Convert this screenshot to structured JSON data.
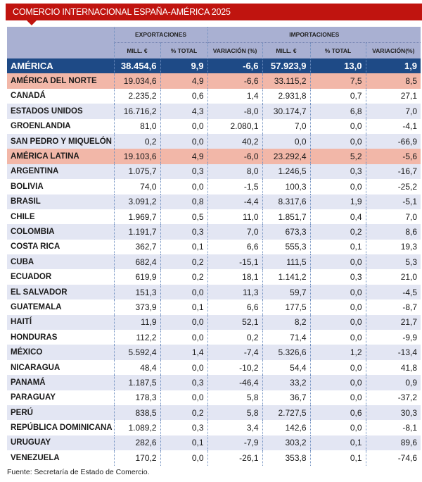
{
  "title": "COMERCIO INTERNACIONAL ESPAÑA-AMÉRICA 2025",
  "groups": {
    "exports": "EXPORTACIONES",
    "imports": "IMPORTACIONES"
  },
  "columns": [
    "MILL. €",
    "% TOTAL",
    "VARIACIÓN (%)",
    "MILL. €",
    "% TOTAL",
    "VARIACIÓN(%)"
  ],
  "colors": {
    "title_bg": "#c0140f",
    "header_bg": "#a9b0d2",
    "total_bg": "#1e4a86",
    "region_bg": "#f2b7a8",
    "stripe_bg": "#e3e6f3"
  },
  "rows": [
    {
      "name": "AMÉRICA",
      "type": "total",
      "values": [
        "38.454,6",
        "9,9",
        "-6,6",
        "57.923,9",
        "13,0",
        "1,9"
      ]
    },
    {
      "name": "AMÉRICA DEL NORTE",
      "type": "region",
      "values": [
        "19.034,6",
        "4,9",
        "-6,6",
        "33.115,2",
        "7,5",
        "8,5"
      ]
    },
    {
      "name": "CANADÁ",
      "type": "country",
      "values": [
        "2.235,2",
        "0,6",
        "1,4",
        "2.931,8",
        "0,7",
        "27,1"
      ]
    },
    {
      "name": "ESTADOS UNIDOS",
      "type": "country",
      "values": [
        "16.716,2",
        "4,3",
        "-8,0",
        "30.174,7",
        "6,8",
        "7,0"
      ]
    },
    {
      "name": "GROENLANDIA",
      "type": "country",
      "values": [
        "81,0",
        "0,0",
        "2.080,1",
        "7,0",
        "0,0",
        "-4,1"
      ]
    },
    {
      "name": "SAN PEDRO Y MIQUELÓN",
      "type": "country",
      "values": [
        "0,2",
        "0,0",
        "40,2",
        "0,0",
        "0,0",
        "-66,9"
      ]
    },
    {
      "name": "AMÉRICA LATINA",
      "type": "region",
      "values": [
        "19.103,6",
        "4,9",
        "-6,0",
        "23.292,4",
        "5,2",
        "-5,6"
      ]
    },
    {
      "name": "ARGENTINA",
      "type": "country",
      "values": [
        "1.075,7",
        "0,3",
        "8,0",
        "1.246,5",
        "0,3",
        "-16,7"
      ]
    },
    {
      "name": "BOLIVIA",
      "type": "country",
      "values": [
        "74,0",
        "0,0",
        "-1,5",
        "100,3",
        "0,0",
        "-25,2"
      ]
    },
    {
      "name": "BRASIL",
      "type": "country",
      "values": [
        "3.091,2",
        "0,8",
        "-4,4",
        "8.317,6",
        "1,9",
        "-5,1"
      ]
    },
    {
      "name": "CHILE",
      "type": "country",
      "values": [
        "1.969,7",
        "0,5",
        "11,0",
        "1.851,7",
        "0,4",
        "7,0"
      ]
    },
    {
      "name": "COLOMBIA",
      "type": "country",
      "values": [
        "1.191,7",
        "0,3",
        "7,0",
        "673,3",
        "0,2",
        "8,6"
      ]
    },
    {
      "name": "COSTA RICA",
      "type": "country",
      "values": [
        "362,7",
        "0,1",
        "6,6",
        "555,3",
        "0,1",
        "19,3"
      ]
    },
    {
      "name": "CUBA",
      "type": "country",
      "values": [
        "682,4",
        "0,2",
        "-15,1",
        "111,5",
        "0,0",
        "5,3"
      ]
    },
    {
      "name": "ECUADOR",
      "type": "country",
      "values": [
        "619,9",
        "0,2",
        "18,1",
        "1.141,2",
        "0,3",
        "21,0"
      ]
    },
    {
      "name": "EL SALVADOR",
      "type": "country",
      "values": [
        "151,3",
        "0,0",
        "11,3",
        "59,7",
        "0,0",
        "-4,5"
      ]
    },
    {
      "name": "GUATEMALA",
      "type": "country",
      "values": [
        "373,9",
        "0,1",
        "6,6",
        "177,5",
        "0,0",
        "-8,7"
      ]
    },
    {
      "name": "HAITÍ",
      "type": "country",
      "values": [
        "11,9",
        "0,0",
        "52,1",
        "8,2",
        "0,0",
        "21,7"
      ]
    },
    {
      "name": "HONDURAS",
      "type": "country",
      "values": [
        "112,2",
        "0,0",
        "0,2",
        "71,4",
        "0,0",
        "-9,9"
      ]
    },
    {
      "name": "MÉXICO",
      "type": "country",
      "values": [
        "5.592,4",
        "1,4",
        "-7,4",
        "5.326,6",
        "1,2",
        "-13,4"
      ]
    },
    {
      "name": "NICARAGUA",
      "type": "country",
      "values": [
        "48,4",
        "0,0",
        "-10,2",
        "54,4",
        "0,0",
        "41,8"
      ]
    },
    {
      "name": "PANAMÁ",
      "type": "country",
      "values": [
        "1.187,5",
        "0,3",
        "-46,4",
        "33,2",
        "0,0",
        "0,9"
      ]
    },
    {
      "name": "PARAGUAY",
      "type": "country",
      "values": [
        "178,3",
        "0,0",
        "5,8",
        "36,7",
        "0,0",
        "-37,2"
      ]
    },
    {
      "name": "PERÚ",
      "type": "country",
      "values": [
        "838,5",
        "0,2",
        "5,8",
        "2.727,5",
        "0,6",
        "30,3"
      ]
    },
    {
      "name": "REPÚBLICA DOMINICANA",
      "type": "country",
      "values": [
        "1.089,2",
        "0,3",
        "3,4",
        "142,6",
        "0,0",
        "-8,1"
      ]
    },
    {
      "name": "URUGUAY",
      "type": "country",
      "values": [
        "282,6",
        "0,1",
        "-7,9",
        "303,2",
        "0,1",
        "89,6"
      ]
    },
    {
      "name": "VENEZUELA",
      "type": "country",
      "values": [
        "170,2",
        "0,0",
        "-26,1",
        "353,8",
        "0,1",
        "-74,6"
      ]
    }
  ],
  "source": "Fuente: Secretaría de Estado de Comercio."
}
